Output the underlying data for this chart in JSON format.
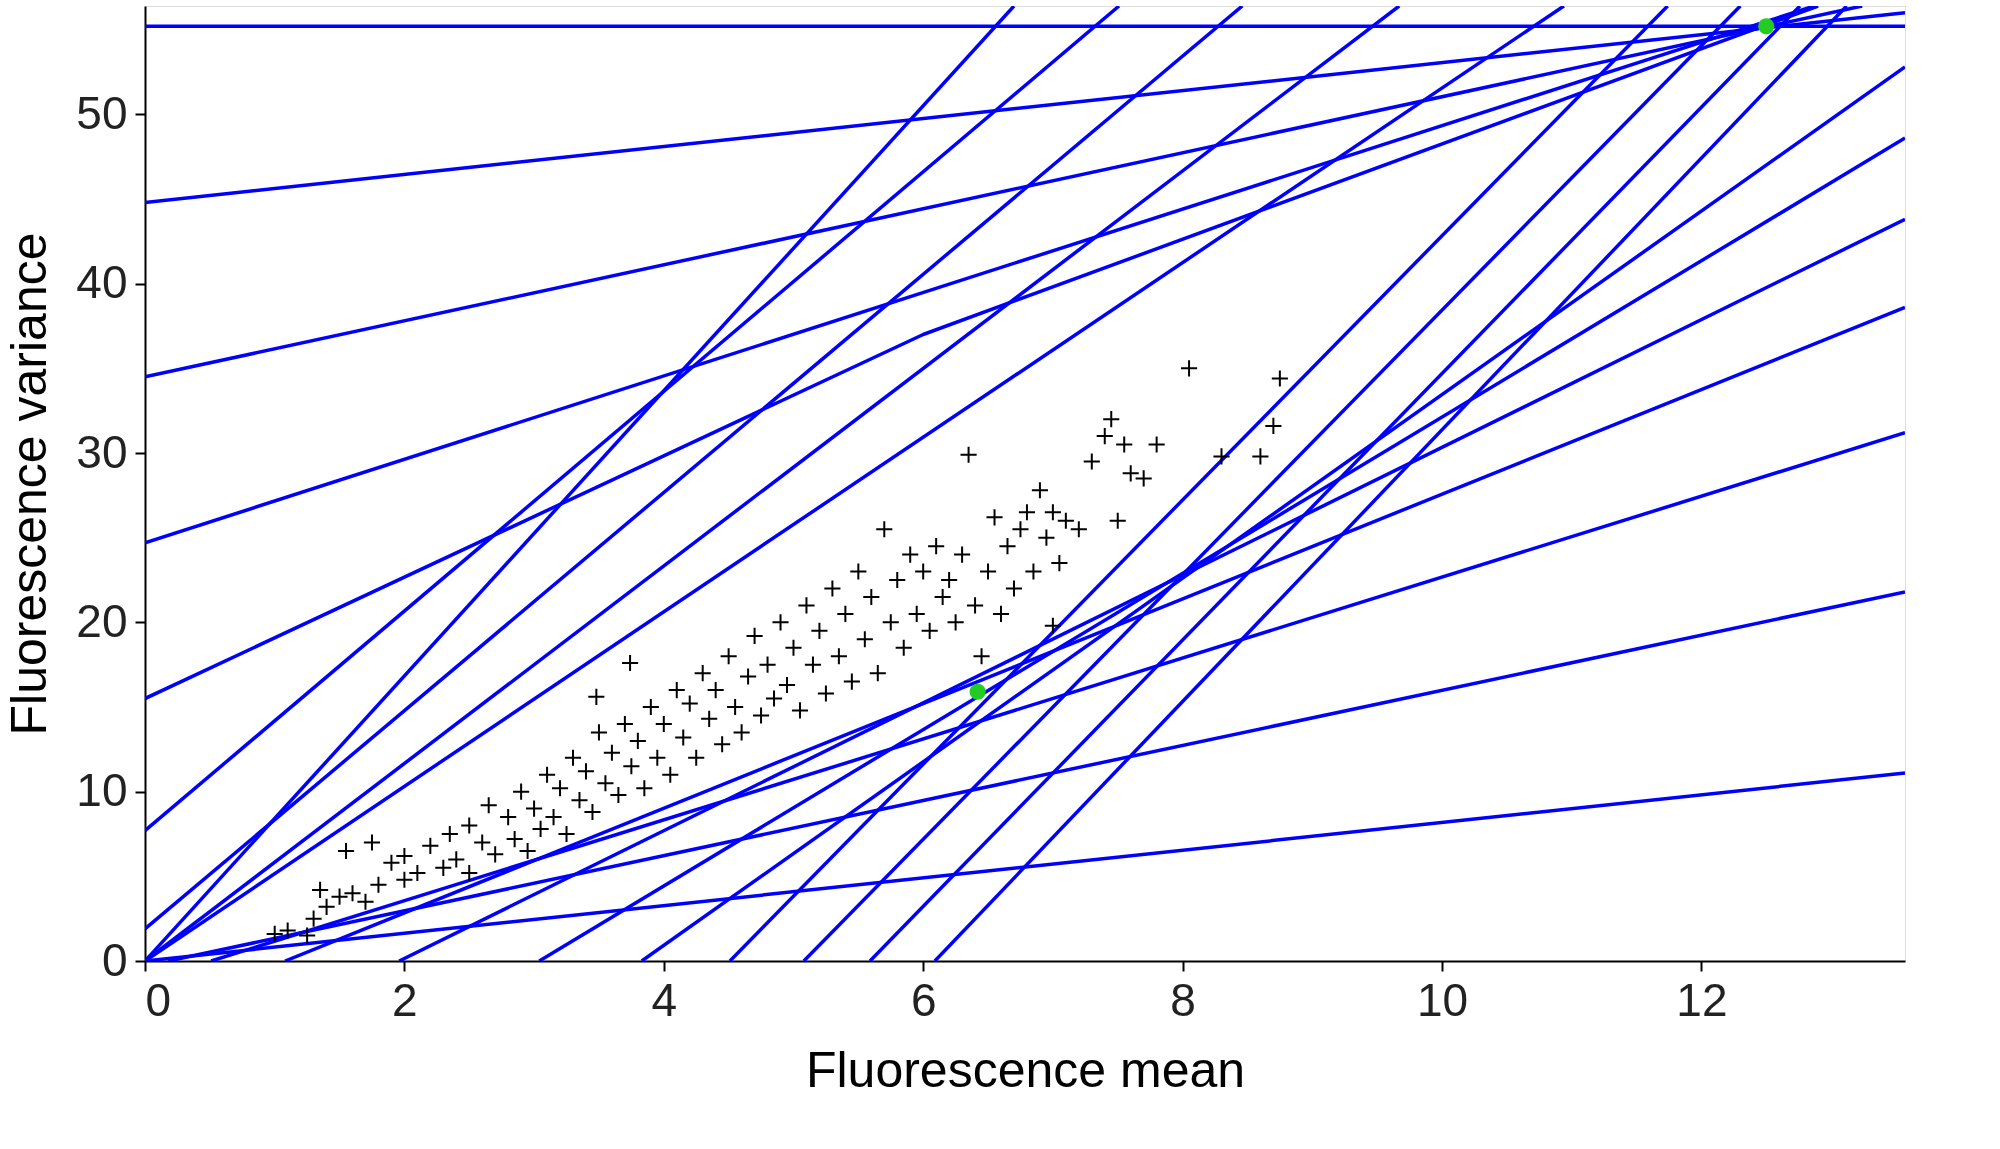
{
  "chart_data": {
    "type": "line",
    "xlabel": "Fluorescence mean",
    "ylabel": "Fluorescence variance",
    "xlim": [
      0,
      13.57
    ],
    "ylim": [
      0,
      56.4
    ],
    "xticks": [
      0,
      2,
      4,
      6,
      8,
      10,
      12
    ],
    "yticks": [
      0,
      10,
      20,
      30,
      40,
      50
    ],
    "grid": false,
    "line_style": "solid",
    "series": [
      {
        "color": "#0000ff",
        "x": [
          0,
          13.57
        ],
        "values": [
          55.2,
          55.2
        ]
      },
      {
        "color": "#0000ff",
        "x": [
          0,
          13.57
        ],
        "values": [
          44.8,
          56.0
        ]
      },
      {
        "color": "#0000ff",
        "x": [
          0,
          13.24
        ],
        "values": [
          34.5,
          56.4
        ]
      },
      {
        "color": "#0000ff",
        "x": [
          0,
          12.87
        ],
        "values": [
          24.7,
          56.4
        ]
      },
      {
        "color": "#0000ff",
        "x": [
          0,
          6.0,
          12.9
        ],
        "values": [
          15.5,
          37.0,
          56.4
        ]
      },
      {
        "color": "#0000ff",
        "x": [
          0,
          7.51
        ],
        "values": [
          7.7,
          56.4
        ]
      },
      {
        "color": "#0000ff",
        "x": [
          0,
          8.46
        ],
        "values": [
          1.9,
          56.4
        ]
      },
      {
        "color": "#0000ff",
        "x": [
          0,
          6.7
        ],
        "values": [
          0,
          56.4
        ]
      },
      {
        "color": "#0000ff",
        "x": [
          0,
          9.67
        ],
        "values": [
          0,
          56.4
        ]
      },
      {
        "color": "#0000ff",
        "x": [
          0,
          10.94
        ],
        "values": [
          0,
          56.4
        ]
      },
      {
        "color": "#0000ff",
        "x": [
          0,
          13.57
        ],
        "values": [
          0,
          11.1
        ]
      },
      {
        "color": "#0000ff",
        "x": [
          0.18,
          13.57
        ],
        "values": [
          0,
          21.8
        ]
      },
      {
        "color": "#0000ff",
        "x": [
          0.51,
          13.57
        ],
        "values": [
          0,
          31.2
        ]
      },
      {
        "color": "#0000ff",
        "x": [
          1.08,
          13.57
        ],
        "values": [
          0,
          38.6
        ]
      },
      {
        "color": "#0000ff",
        "x": [
          1.96,
          13.57
        ],
        "values": [
          0,
          43.8
        ]
      },
      {
        "color": "#0000ff",
        "x": [
          3.04,
          13.57
        ],
        "values": [
          0,
          48.6
        ]
      },
      {
        "color": "#0000ff",
        "x": [
          3.83,
          13.57
        ],
        "values": [
          0,
          52.8
        ]
      },
      {
        "color": "#0000ff",
        "x": [
          4.51,
          11.74
        ],
        "values": [
          0,
          56.4
        ]
      },
      {
        "color": "#0000ff",
        "x": [
          5.08,
          12.3
        ],
        "values": [
          0,
          56.4
        ]
      },
      {
        "color": "#0000ff",
        "x": [
          5.59,
          12.76
        ],
        "values": [
          0,
          56.4
        ]
      },
      {
        "color": "#0000ff",
        "x": [
          6.09,
          13.12
        ],
        "values": [
          0,
          56.4
        ]
      },
      {
        "type": "scatter",
        "color": "#000000",
        "marker": "cross",
        "x": [
          1.0,
          1.1,
          1.25,
          1.3,
          1.35,
          1.4,
          1.5,
          1.55,
          1.6,
          1.7,
          1.75,
          1.8,
          1.9,
          2.0,
          2.0,
          2.1,
          2.2,
          2.3,
          2.35,
          2.4,
          2.5,
          2.5,
          2.6,
          2.65,
          2.7,
          2.8,
          2.85,
          2.9,
          2.95,
          3.0,
          3.05,
          3.1,
          3.15,
          3.2,
          3.25,
          3.3,
          3.35,
          3.4,
          3.45,
          3.5,
          3.55,
          3.6,
          3.65,
          3.7,
          3.75,
          3.8,
          3.85,
          3.9,
          3.95,
          4.0,
          4.05,
          4.1,
          4.15,
          4.2,
          4.25,
          4.3,
          4.35,
          4.4,
          4.45,
          4.5,
          4.55,
          4.6,
          4.65,
          4.7,
          4.75,
          4.8,
          4.85,
          4.9,
          4.95,
          5.0,
          5.05,
          5.1,
          5.15,
          5.2,
          5.25,
          5.3,
          5.35,
          5.4,
          5.45,
          5.5,
          5.55,
          5.6,
          5.65,
          5.7,
          5.75,
          5.8,
          5.85,
          5.9,
          5.95,
          6.0,
          6.05,
          6.1,
          6.15,
          6.2,
          6.25,
          6.3,
          6.35,
          6.4,
          6.45,
          6.5,
          6.55,
          6.6,
          6.65,
          6.7,
          6.75,
          6.8,
          6.85,
          6.9,
          6.95,
          7.0,
          7.0,
          7.05,
          7.1,
          7.2,
          7.3,
          7.4,
          7.45,
          7.5,
          7.55,
          7.6,
          7.7,
          7.8,
          8.05,
          8.3,
          8.6,
          8.7,
          8.75,
          3.74,
          3.48
        ],
        "values": [
          1.6,
          1.8,
          1.5,
          2.5,
          4.2,
          3.2,
          3.8,
          6.5,
          4.0,
          3.5,
          7.0,
          4.5,
          5.8,
          6.2,
          4.8,
          5.2,
          6.8,
          5.5,
          7.5,
          6.0,
          8.0,
          5.2,
          7.0,
          9.2,
          6.3,
          8.5,
          7.2,
          10.0,
          6.5,
          9.0,
          7.8,
          11.0,
          8.5,
          10.2,
          7.5,
          12.0,
          9.5,
          11.2,
          8.8,
          13.5,
          10.5,
          12.3,
          9.8,
          14.0,
          11.5,
          13.0,
          10.2,
          15.0,
          12.0,
          14.0,
          11.0,
          16.0,
          13.2,
          15.2,
          12.0,
          17.0,
          14.3,
          16.0,
          12.8,
          18.0,
          15.0,
          13.5,
          16.8,
          19.2,
          14.5,
          17.5,
          15.5,
          20.0,
          16.3,
          18.5,
          14.8,
          21.0,
          17.5,
          19.5,
          15.8,
          22.0,
          18.0,
          20.5,
          16.5,
          23.0,
          19.0,
          21.5,
          17.0,
          25.5,
          20.0,
          22.5,
          18.5,
          24.0,
          20.5,
          23.0,
          19.5,
          24.5,
          21.5,
          22.5,
          20.0,
          24.0,
          29.9,
          21.0,
          18.0,
          23.0,
          26.2,
          20.5,
          24.5,
          22.0,
          25.5,
          26.5,
          23.0,
          27.8,
          25.0,
          26.5,
          19.8,
          23.5,
          26.0,
          25.5,
          29.5,
          31.0,
          32.0,
          26.0,
          30.5,
          28.8,
          28.5,
          30.5,
          35.0,
          29.8,
          29.8,
          31.6,
          34.4,
          17.6,
          15.6
        ]
      },
      {
        "type": "scatter",
        "color": "#22cc22",
        "marker": "circle",
        "x": [
          12.5,
          6.42
        ],
        "values": [
          55.2,
          15.9
        ]
      }
    ]
  }
}
